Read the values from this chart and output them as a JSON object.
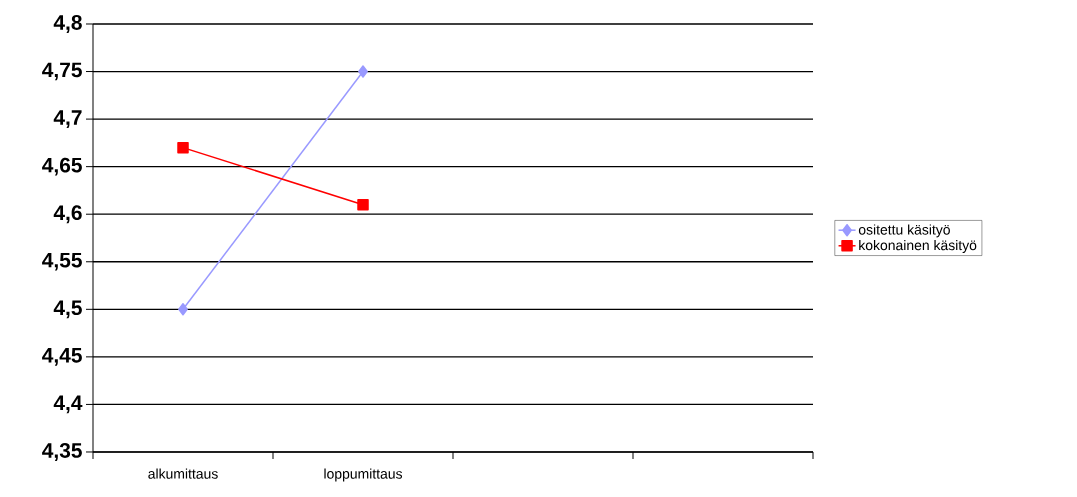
{
  "chart_data": {
    "type": "line",
    "categories": [
      "alkumittaus",
      "loppumittaus",
      null,
      null
    ],
    "series": [
      {
        "name": "ositettu käsityö",
        "color": "#9999ff",
        "values": [
          4.5,
          4.75,
          null,
          null
        ],
        "marker": "diamond"
      },
      {
        "name": "kokonainen käsityö",
        "color": "#ff0000",
        "values": [
          4.67,
          4.61,
          null,
          null
        ],
        "marker": "square"
      }
    ],
    "ylim": [
      4.35,
      4.8
    ],
    "yticks": [
      {
        "value": 4.35,
        "label": "4,35"
      },
      {
        "value": 4.4,
        "label": "4,4"
      },
      {
        "value": 4.45,
        "label": "4,45"
      },
      {
        "value": 4.5,
        "label": "4,5"
      },
      {
        "value": 4.55,
        "label": "4,55"
      },
      {
        "value": 4.6,
        "label": "4,6"
      },
      {
        "value": 4.65,
        "label": "4,65"
      },
      {
        "value": 4.7,
        "label": "4,7"
      },
      {
        "value": 4.75,
        "label": "4,75"
      },
      {
        "value": 4.8,
        "label": "4,8"
      }
    ],
    "grid": "y",
    "legend": "right"
  }
}
